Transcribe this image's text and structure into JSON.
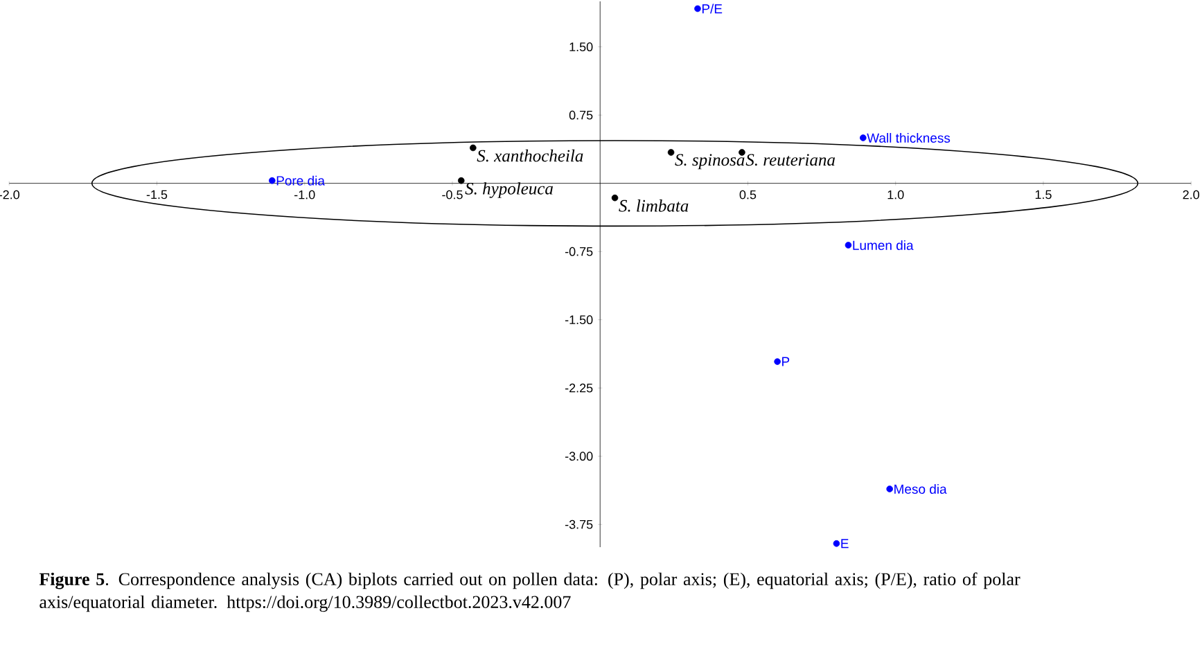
{
  "chart_data": {
    "type": "scatter",
    "xlim": [
      -2.0,
      2.0
    ],
    "ylim": [
      -4.0,
      2.0
    ],
    "xticks": [
      {
        "value": -2.0,
        "label": "-2.0"
      },
      {
        "value": -1.5,
        "label": "-1.5"
      },
      {
        "value": -1.0,
        "label": "-1.0"
      },
      {
        "value": -0.5,
        "label": "-0.5"
      },
      {
        "value": 0.5,
        "label": "0.5"
      },
      {
        "value": 1.0,
        "label": "1.0"
      },
      {
        "value": 1.5,
        "label": "1.5"
      },
      {
        "value": 2.0,
        "label": "2.0"
      }
    ],
    "yticks": [
      {
        "value": 1.5,
        "label": "1.50"
      },
      {
        "value": 0.75,
        "label": "0.75"
      },
      {
        "value": -0.75,
        "label": "-0.75"
      },
      {
        "value": -1.5,
        "label": "-1.50"
      },
      {
        "value": -2.25,
        "label": "-2.25"
      },
      {
        "value": -3.0,
        "label": "-3.00"
      },
      {
        "value": -3.75,
        "label": "-3.75"
      }
    ],
    "series": [
      {
        "type": "scatter",
        "color": "#000000",
        "x": [
          -0.43,
          -0.47,
          0.24,
          0.48,
          0.05
        ],
        "values": [
          0.39,
          0.03,
          0.34,
          0.34,
          -0.16
        ],
        "value_labels": [
          "S. xanthocheila",
          "S. hypoleuca",
          "S. spinosa",
          "S. reuteriana",
          "S. limbata"
        ]
      },
      {
        "type": "scatter",
        "color": "#0000ff",
        "x": [
          0.33,
          0.89,
          -1.11,
          0.84,
          0.6,
          0.98,
          0.8
        ],
        "values": [
          1.92,
          0.5,
          0.03,
          -0.68,
          -1.96,
          -3.36,
          -3.96
        ],
        "value_labels": [
          "P/E",
          "Wall thickness",
          "Pore dia",
          "Lumen dia",
          "P",
          "Meso dia",
          "E"
        ]
      }
    ],
    "annotations": [
      "**Figure 5**. Correspondence analysis (CA) biplots carried out on pollen data: (P), polar axis; (E), equatorial axis; (P/E), ratio of polar axis/equatorial diameter. https://doi.org/10.3989/collectbot.2023.v42.007"
    ]
  }
}
